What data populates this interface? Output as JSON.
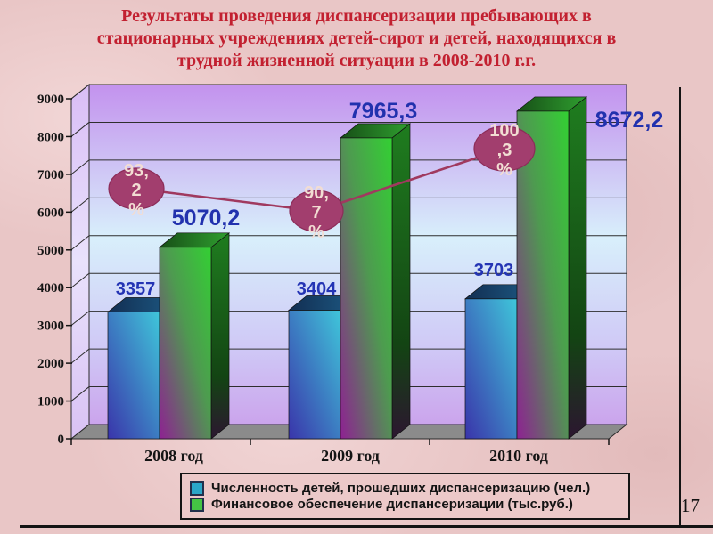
{
  "slide": {
    "title_lines": [
      "Результаты проведения диспансеризации пребывающих в",
      "стационарных учреждениях детей-сирот и детей, находящихся в",
      "трудной жизненной ситуации в 2008-2010 г.г."
    ],
    "page_number": "17"
  },
  "chart_data": {
    "type": "bar",
    "variant": "3d-clustered-with-percent-line",
    "title": "",
    "xlabel": "",
    "ylabel": "",
    "categories": [
      "2008 год",
      "2009 год",
      "2010 год"
    ],
    "series": [
      {
        "name": "Численность детей, прошедших диспансеризацию (чел.)",
        "values": [
          3357,
          3404,
          3703
        ],
        "value_labels": [
          "3357",
          "3404",
          "3703"
        ],
        "color": "#2aa6c8"
      },
      {
        "name": "Финансовое обеспечение диспансеризации (тыс.руб.)",
        "values": [
          5070.2,
          7965.3,
          8672.2
        ],
        "value_labels": [
          "5070,2",
          "7965,3",
          "8672,2"
        ],
        "color": "#44c444"
      }
    ],
    "percent_line": {
      "values": [
        93.2,
        90.7,
        100.3
      ],
      "point_labels": [
        [
          "93,",
          "2",
          "%"
        ],
        [
          "90,",
          "7",
          "%"
        ],
        [
          "100",
          ",3",
          "%"
        ]
      ],
      "line_color": "#a0395f",
      "marker_fill": "#a23e6e"
    },
    "ylim": [
      0,
      9000
    ],
    "ytick_step": 1000,
    "yaxis_labels": [
      "0",
      "1000",
      "2000",
      "3000",
      "4000",
      "5000",
      "6000",
      "7000",
      "8000",
      "9000"
    ],
    "legend_position": "bottom",
    "grid": true
  }
}
